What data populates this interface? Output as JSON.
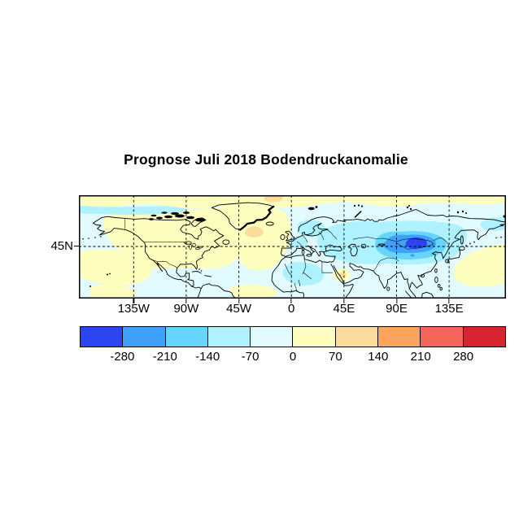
{
  "chart_data": {
    "type": "heatmap",
    "subtype": "filled-contour-world-map",
    "title": "Prognose Juli 2018 Bodendruckanomalie",
    "projection": "equirectangular",
    "lon_range": [
      "180W",
      "180E"
    ],
    "lat_range": [
      "0N",
      "90N"
    ],
    "x_tick_labels": [
      "135W",
      "90W",
      "45W",
      "0",
      "45E",
      "90E",
      "135E"
    ],
    "y_tick_labels": [
      "45N"
    ],
    "grid": "dashed black lines every 45 degrees",
    "colorbar": {
      "tick_labels": [
        "-280",
        "-210",
        "-140",
        "-70",
        "0",
        "70",
        "140",
        "210",
        "280"
      ],
      "levels": [
        -350,
        -280,
        -210,
        -140,
        -70,
        0,
        70,
        140,
        210,
        280,
        350
      ],
      "colors": [
        "#2b46f0",
        "#41a0fa",
        "#66d4fc",
        "#aef2ff",
        "#e1fbff",
        "#fefebe",
        "#fbdc9b",
        "#fda55f",
        "#f4655a",
        "#d62530"
      ]
    },
    "anomaly_features": [
      {
        "region": "Arctic band 75N-90N, full width",
        "sign": "positive",
        "level": "0 to +70"
      },
      {
        "region": "North America and North Atlantic",
        "sign": "positive",
        "level": "0 to +70"
      },
      {
        "region": "Southeast of Greenland",
        "sign": "positive",
        "level": "+70 to +140"
      },
      {
        "region": "North of Scandinavia (top edge near 0E)",
        "sign": "positive",
        "level": "+70 to +140"
      },
      {
        "region": "Subtropical Northeast Pacific (bottom left)",
        "sign": "positive",
        "level": "0 to +70"
      },
      {
        "region": "Tropical Atlantic (bottom center)",
        "sign": "positive",
        "level": "0 to +70"
      },
      {
        "region": "Northwest Pacific east of Japan",
        "sign": "positive",
        "level": "0 to +70"
      },
      {
        "region": "Eurasia mid-latitudes broad area",
        "sign": "negative",
        "level": "-140 to -70"
      },
      {
        "region": "Central Asia / southern Siberia",
        "sign": "negative",
        "level": "-210 to -140"
      },
      {
        "region": "Mongolia / Baikal core",
        "sign": "negative",
        "level": "below -280"
      },
      {
        "region": "West Africa",
        "sign": "negative",
        "level": "-140 to -70"
      },
      {
        "region": "Bering Sea",
        "sign": "negative",
        "level": "-140 to -70"
      },
      {
        "region": "Oceans elsewhere",
        "sign": "negative",
        "level": "-70 to 0"
      }
    ]
  }
}
